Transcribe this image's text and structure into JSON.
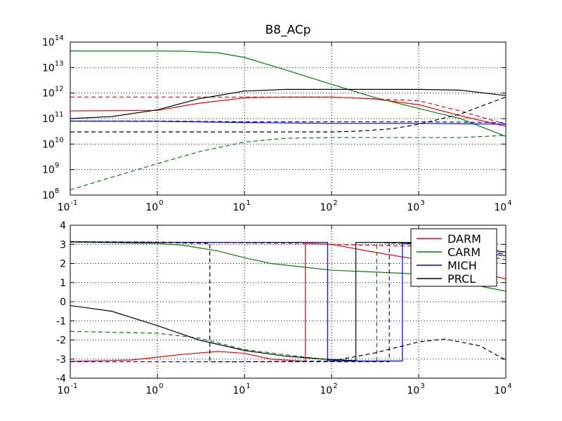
{
  "chart_data": [
    {
      "type": "line",
      "title": "B8_ACp",
      "x_scale": "log",
      "y_scale": "log",
      "xlim": [
        0.1,
        10000
      ],
      "ylim": [
        100000000.0,
        100000000000000.0
      ],
      "x_ticks": [
        {
          "base": "10",
          "exp": "-1"
        },
        {
          "base": "10",
          "exp": "0"
        },
        {
          "base": "10",
          "exp": "1"
        },
        {
          "base": "10",
          "exp": "2"
        },
        {
          "base": "10",
          "exp": "3"
        },
        {
          "base": "10",
          "exp": "4"
        }
      ],
      "y_ticks": [
        {
          "base": "10",
          "exp": "8"
        },
        {
          "base": "10",
          "exp": "9"
        },
        {
          "base": "10",
          "exp": "10"
        },
        {
          "base": "10",
          "exp": "11"
        },
        {
          "base": "10",
          "exp": "12"
        },
        {
          "base": "10",
          "exp": "13"
        },
        {
          "base": "10",
          "exp": "14"
        }
      ],
      "series": [
        {
          "name": "DARM",
          "color": "#ff0000",
          "style": "solid",
          "x": [
            0.1,
            1,
            3,
            10,
            30,
            100,
            300,
            1000,
            3000,
            10000
          ],
          "y": [
            200000000000.0,
            210000000000.0,
            400000000000.0,
            650000000000.0,
            700000000000.0,
            700000000000.0,
            600000000000.0,
            350000000000.0,
            130000000000.0,
            50000000000.0
          ]
        },
        {
          "name": "DARM",
          "color": "#ff0000",
          "style": "dashed",
          "x": [
            0.1,
            1,
            10,
            100,
            1000,
            3000,
            10000
          ],
          "y": [
            700000000000.0,
            700000000000.0,
            700000000000.0,
            700000000000.0,
            500000000000.0,
            200000000000.0,
            60000000000.0
          ]
        },
        {
          "name": "CARM",
          "color": "#008000",
          "style": "solid",
          "x": [
            0.1,
            1,
            2,
            5,
            10,
            30,
            100,
            300,
            1000,
            3000,
            10000
          ],
          "y": [
            45000000000000.0,
            45000000000000.0,
            44000000000000.0,
            38000000000000.0,
            25000000000000.0,
            8000000000000.0,
            2200000000000.0,
            700000000000.0,
            250000000000.0,
            100000000000.0,
            20000000000.0
          ]
        },
        {
          "name": "CARM",
          "color": "#008000",
          "style": "dashed",
          "x": [
            0.1,
            0.3,
            1,
            3,
            10,
            30,
            100,
            1000,
            3000,
            10000
          ],
          "y": [
            160000000.0,
            500000000.0,
            1700000000.0,
            5000000000.0,
            12000000000.0,
            17000000000.0,
            18000000000.0,
            18000000000.0,
            18000000000.0,
            22000000000.0
          ]
        },
        {
          "name": "MICH",
          "color": "#0000ff",
          "style": "solid",
          "x": [
            0.1,
            1,
            10,
            100,
            1000,
            10000
          ],
          "y": [
            80000000000.0,
            78000000000.0,
            70000000000.0,
            65000000000.0,
            65000000000.0,
            60000000000.0
          ]
        },
        {
          "name": "MICH",
          "color": "#0000ff",
          "style": "dashed",
          "x": [
            0.1,
            1,
            10,
            100,
            1000,
            10000
          ],
          "y": [
            80000000000.0,
            80000000000.0,
            75000000000.0,
            75000000000.0,
            75000000000.0,
            70000000000.0
          ]
        },
        {
          "name": "PRCL",
          "color": "#000000",
          "style": "solid",
          "x": [
            0.1,
            0.3,
            1,
            3,
            10,
            30,
            100,
            1000,
            3000,
            10000
          ],
          "y": [
            100000000000.0,
            120000000000.0,
            220000000000.0,
            600000000000.0,
            1200000000000.0,
            1400000000000.0,
            1400000000000.0,
            1400000000000.0,
            1300000000000.0,
            800000000000.0
          ]
        },
        {
          "name": "PRCL",
          "color": "#000000",
          "style": "dashed",
          "x": [
            0.1,
            1,
            10,
            100,
            200,
            500,
            1000,
            3000,
            10000
          ],
          "y": [
            30000000000.0,
            30000000000.0,
            30000000000.0,
            30000000000.0,
            32000000000.0,
            40000000000.0,
            60000000000.0,
            150000000000.0,
            700000000000.0
          ]
        }
      ]
    },
    {
      "type": "line",
      "title": "",
      "x_scale": "log",
      "y_scale": "linear",
      "xlim": [
        0.1,
        10000
      ],
      "ylim": [
        -4,
        4
      ],
      "x_ticks": [
        {
          "base": "10",
          "exp": "-1"
        },
        {
          "base": "10",
          "exp": "0"
        },
        {
          "base": "10",
          "exp": "1"
        },
        {
          "base": "10",
          "exp": "2"
        },
        {
          "base": "10",
          "exp": "3"
        },
        {
          "base": "10",
          "exp": "4"
        }
      ],
      "y_ticks": [
        "-4",
        "-3",
        "-2",
        "-1",
        "0",
        "1",
        "2",
        "3",
        "4"
      ],
      "legend": {
        "position": "top-right",
        "entries": [
          {
            "label": "DARM",
            "color": "#ff0000"
          },
          {
            "label": "CARM",
            "color": "#008000"
          },
          {
            "label": "MICH",
            "color": "#0000ff"
          },
          {
            "label": "PRCL",
            "color": "#000000"
          }
        ]
      },
      "series": [
        {
          "name": "DARM",
          "color": "#ff0000",
          "style": "solid",
          "x": [
            0.1,
            0.5,
            1,
            2,
            5,
            10,
            20,
            50,
            50,
            100,
            300,
            1000,
            3000,
            10000
          ],
          "y": [
            -3.12,
            -3.05,
            -2.9,
            -2.75,
            -2.6,
            -2.7,
            -3.0,
            -3.12,
            3.05,
            3.0,
            2.6,
            2.2,
            1.7,
            1.2
          ]
        },
        {
          "name": "DARM",
          "color": "#ff0000",
          "style": "dashed",
          "x": [
            0.1,
            1,
            10,
            50,
            100,
            1000,
            10000
          ],
          "y": [
            3.14,
            3.12,
            3.08,
            3.05,
            3.0,
            2.9,
            2.5
          ]
        },
        {
          "name": "CARM",
          "color": "#008000",
          "style": "solid",
          "x": [
            0.1,
            1,
            2,
            5,
            10,
            20,
            100,
            1000,
            10000
          ],
          "y": [
            3.12,
            3.05,
            2.95,
            2.65,
            2.3,
            2.0,
            1.65,
            1.45,
            0.55
          ]
        },
        {
          "name": "CARM",
          "color": "#008000",
          "style": "dashed",
          "x": [
            0.1,
            1,
            3,
            10,
            50,
            100,
            200,
            330,
            330,
            1000,
            10000
          ],
          "y": [
            -1.55,
            -1.65,
            -1.9,
            -2.5,
            -2.9,
            -3.05,
            -3.1,
            -3.12,
            3.1,
            3.0,
            2.2
          ]
        },
        {
          "name": "MICH",
          "color": "#0000ff",
          "style": "solid",
          "x": [
            0.1,
            1,
            10,
            90,
            90,
            200,
            650,
            650,
            1000,
            10000
          ],
          "y": [
            3.14,
            3.1,
            3.1,
            3.1,
            -3.1,
            -3.1,
            -3.1,
            3.05,
            3.0,
            2.4
          ]
        },
        {
          "name": "MICH",
          "color": "#0000ff",
          "style": "dashed",
          "x": [
            0.1,
            1,
            10,
            100,
            460,
            460,
            1000,
            10000
          ],
          "y": [
            -3.14,
            -3.14,
            -3.14,
            -3.14,
            -3.14,
            3.1,
            3.05,
            2.5
          ]
        },
        {
          "name": "PRCL",
          "color": "#000000",
          "style": "solid",
          "x": [
            0.1,
            0.3,
            1,
            3,
            10,
            30,
            80,
            190,
            190,
            1000,
            10000
          ],
          "y": [
            -0.2,
            -0.5,
            -1.25,
            -2.0,
            -2.55,
            -2.85,
            -3.0,
            -3.08,
            3.1,
            3.1,
            2.6
          ]
        },
        {
          "name": "PRCL",
          "color": "#000000",
          "style": "dashed",
          "x": [
            0.1,
            1,
            4,
            4,
            10,
            100,
            300,
            1000,
            2000,
            5000,
            10000
          ],
          "y": [
            3.14,
            3.1,
            3.05,
            -3.14,
            -3.14,
            -3.1,
            -2.7,
            -2.1,
            -1.95,
            -2.3,
            -3.05
          ]
        }
      ]
    }
  ]
}
